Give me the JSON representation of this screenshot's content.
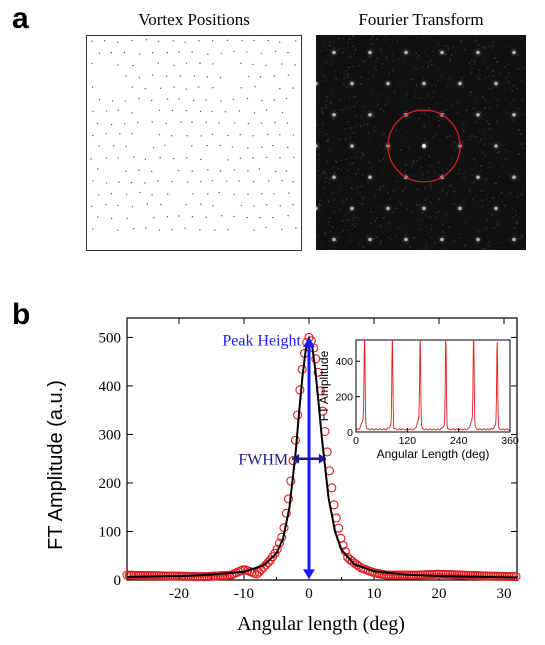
{
  "panel_a": {
    "letter": "a",
    "left_title": "Vortex Positions",
    "right_title": "Fourier Transform"
  },
  "panel_b": {
    "letter": "b"
  },
  "chart_data": [
    {
      "type": "scatter",
      "title": "",
      "xlabel": "Angular length (deg)",
      "ylabel": "FT Amplitude (a.u.)",
      "xlim": [
        -28,
        32
      ],
      "ylim": [
        0,
        540
      ],
      "xticks": [
        -20,
        -10,
        0,
        10,
        20,
        30
      ],
      "yticks": [
        0,
        100,
        200,
        300,
        400,
        500
      ],
      "annotations": [
        "Peak Height",
        "FWHM"
      ],
      "annotation_colors": {
        "peak_height": "#1a1aff",
        "fwhm": "#1a1a8c"
      },
      "series": [
        {
          "style": "circles",
          "color": "#e41a1c",
          "x": [
            -28,
            -24,
            -20,
            -16,
            -12,
            -10,
            -8,
            -6,
            -5,
            -4,
            -3,
            -2,
            -1.5,
            -1,
            -0.5,
            0,
            0.5,
            1,
            1.5,
            2,
            3,
            4,
            5,
            6,
            8,
            10,
            12,
            16,
            20,
            24,
            28,
            32
          ],
          "y": [
            10,
            9,
            8,
            7,
            10,
            22,
            12,
            40,
            60,
            95,
            180,
            300,
            380,
            440,
            485,
            500,
            490,
            460,
            420,
            360,
            240,
            140,
            80,
            45,
            25,
            15,
            10,
            10,
            12,
            10,
            8,
            7
          ]
        },
        {
          "style": "line",
          "color": "#000000",
          "x": [
            -28,
            -20,
            -15,
            -10,
            -7,
            -5,
            -4,
            -3,
            -2,
            -1.5,
            -1,
            -0.5,
            0,
            0.5,
            1,
            1.5,
            2,
            3,
            4,
            5,
            7,
            10,
            15,
            20,
            32
          ],
          "y": [
            6,
            8,
            11,
            17,
            30,
            55,
            85,
            150,
            270,
            350,
            420,
            475,
            498,
            480,
            430,
            360,
            290,
            170,
            100,
            62,
            32,
            18,
            11,
            8,
            5
          ]
        }
      ]
    },
    {
      "type": "line",
      "title": "",
      "xlabel": "Angular Length (deg)",
      "ylabel": "FT Amplitude",
      "xlim": [
        0,
        360
      ],
      "ylim": [
        0,
        520
      ],
      "xticks": [
        0,
        120,
        240,
        360
      ],
      "yticks": [
        0,
        200,
        400
      ],
      "series": [
        {
          "color": "#e41a1c",
          "peaks_deg": [
            20,
            85,
            150,
            210,
            275,
            330
          ],
          "peak_heights": [
            490,
            495,
            470,
            505,
            490,
            480
          ],
          "baseline": 12
        }
      ]
    }
  ]
}
